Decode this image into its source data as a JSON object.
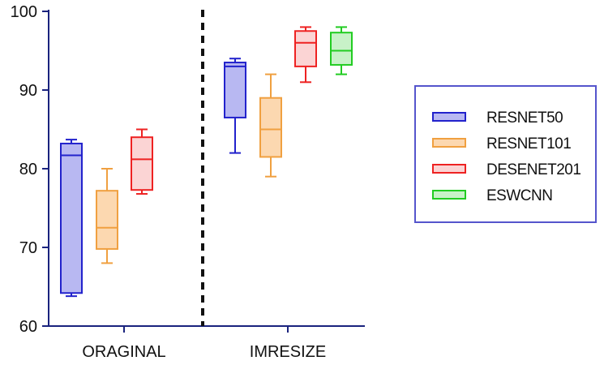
{
  "chart_data": {
    "type": "boxplot",
    "title": "",
    "xlabel": "",
    "ylabel": "",
    "ylim": [
      60,
      100
    ],
    "yticks": [
      60,
      70,
      80,
      90,
      100
    ],
    "grid": false,
    "legend_position": "right",
    "categories": [
      "ORAGINAL",
      "IMRESIZE"
    ],
    "divider": "dashed vertical line between categories",
    "series": [
      {
        "name": "RESNET50",
        "stroke": "#2222cc",
        "fill": "#b8b8f2",
        "boxes": [
          {
            "category": "ORAGINAL",
            "min": 63.8,
            "q1": 64.2,
            "median": 81.7,
            "q3": 83.2,
            "max": 83.7
          },
          {
            "category": "IMRESIZE",
            "min": 82,
            "q1": 86.5,
            "median": 93,
            "q3": 93.5,
            "max": 94
          }
        ]
      },
      {
        "name": "RESNET101",
        "stroke": "#f0a040",
        "fill": "#fcd8b0",
        "boxes": [
          {
            "category": "ORAGINAL",
            "min": 68,
            "q1": 69.8,
            "median": 72.5,
            "q3": 77.2,
            "max": 80
          },
          {
            "category": "IMRESIZE",
            "min": 79,
            "q1": 81.5,
            "median": 85,
            "q3": 89,
            "max": 92
          }
        ]
      },
      {
        "name": "DESENET201",
        "stroke": "#ee2222",
        "fill": "#fbd4d4",
        "boxes": [
          {
            "category": "ORAGINAL",
            "min": 76.8,
            "q1": 77.3,
            "median": 81.2,
            "q3": 84,
            "max": 85
          },
          {
            "category": "IMRESIZE",
            "min": 91,
            "q1": 93,
            "median": 96,
            "q3": 97.5,
            "max": 98
          }
        ]
      },
      {
        "name": "ESWCNN",
        "stroke": "#22cc22",
        "fill": "#c8f2c8",
        "boxes": [
          {
            "category": "IMRESIZE",
            "min": 92,
            "q1": 93.2,
            "median": 95,
            "q3": 97.3,
            "max": 98
          }
        ]
      }
    ]
  },
  "colors": {
    "axis": "#1a237e",
    "divider": "#111111",
    "legend_border": "#5555cc",
    "text": "#111111"
  }
}
